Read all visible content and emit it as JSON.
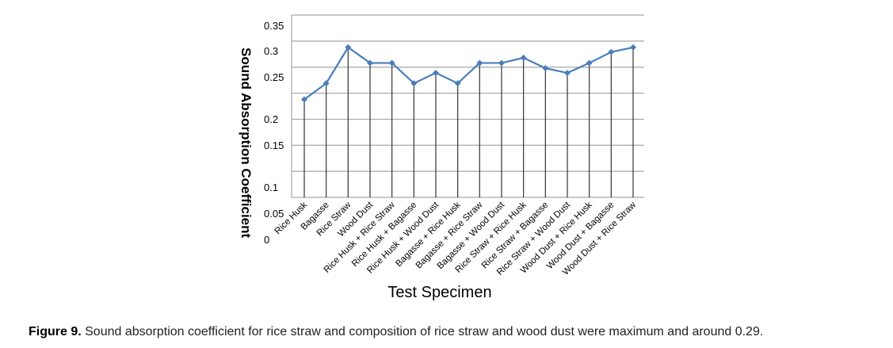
{
  "chart_data": {
    "type": "line",
    "title": "",
    "xlabel": "Test Specimen",
    "ylabel": "Sound Absorption Coefficient",
    "ylim": [
      0,
      0.35
    ],
    "y_ticks": [
      "0.35",
      "0.3",
      "0.25",
      "0.2",
      "0.15",
      "0.1",
      "0.05",
      "0"
    ],
    "grid": true,
    "legend": "none",
    "categories": [
      "Rice Husk",
      "Bagasse",
      "Rice Straw",
      "Wood Dust",
      "Rice Husk + Rice Straw",
      "Rice Husk + Bagasse",
      "Rice Husk + Wood Dust",
      "Bagasse + Rice Husk",
      "Bagasse + Rice Straw",
      "Bagasse + Wood Dust",
      "Rice Straw + Rice Husk",
      "Rice Straw + Bagasse",
      "Rice Straw + Wood Dust",
      "Wood Dust + Rice Husk",
      "Wood Dust + Bagasse",
      "Wood Dust + Rice Straw"
    ],
    "series": [
      {
        "name": "Sound Absorption Coefficient",
        "color": "#4a7ebb",
        "values": [
          0.188,
          0.219,
          0.288,
          0.258,
          0.258,
          0.219,
          0.239,
          0.219,
          0.258,
          0.258,
          0.268,
          0.248,
          0.239,
          0.258,
          0.279,
          0.288
        ]
      }
    ]
  },
  "caption": {
    "label": "Figure 9.",
    "text": " Sound absorption coefficient for rice straw and composition of rice straw and wood dust were maximum and around 0.29."
  }
}
